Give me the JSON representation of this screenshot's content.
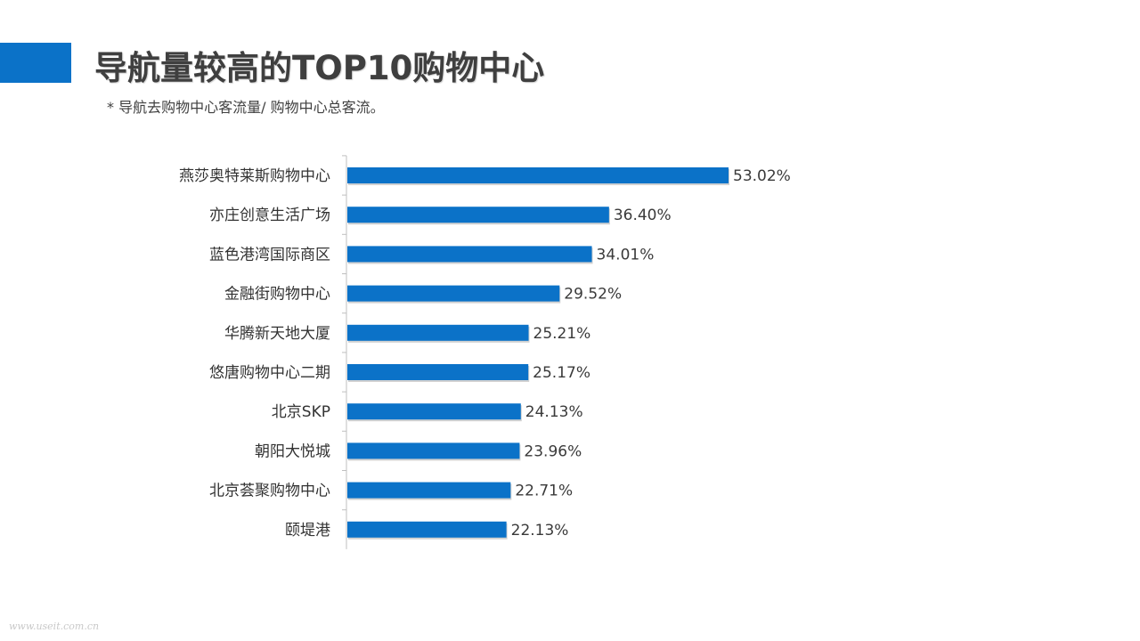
{
  "slide": {
    "title": "导航量较高的TOP10购物中心",
    "subtitle": "* 导航去购物中心客流量/ 购物中心总客流。",
    "watermark": "www.useit.com.cn",
    "accent_color": "#0b72c8"
  },
  "chart_data": {
    "type": "bar",
    "orientation": "horizontal",
    "categories": [
      "燕莎奥特莱斯购物中心",
      "亦庄创意生活广场",
      "蓝色港湾国际商区",
      "金融街购物中心",
      "华腾新天地大厦",
      "悠唐购物中心二期",
      "北京SKP",
      "朝阳大悦城",
      "北京荟聚购物中心",
      "颐堤港"
    ],
    "values": [
      53.02,
      36.4,
      34.01,
      29.52,
      25.21,
      25.17,
      24.13,
      23.96,
      22.71,
      22.13
    ],
    "value_labels": [
      "53.02%",
      "36.40%",
      "34.01%",
      "29.52%",
      "25.21%",
      "25.17%",
      "24.13%",
      "23.96%",
      "22.71%",
      "22.13%"
    ],
    "unit": "%",
    "bar_color": "#0b72c8",
    "grid": false,
    "legend": "none"
  }
}
